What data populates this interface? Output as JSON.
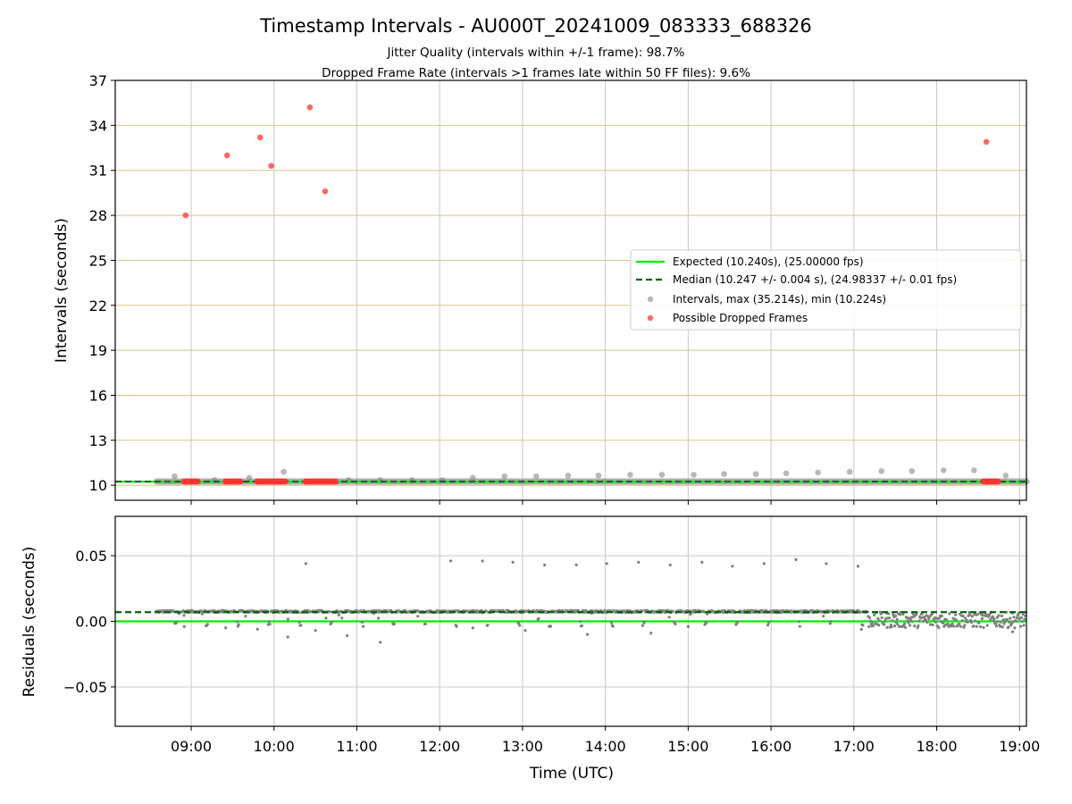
{
  "chart_data": {
    "title": "Timestamp Intervals - AU000T_20241009_083333_688326",
    "subtitle_lines": [
      "Jitter Quality (intervals within +/-1 frame): 98.7%",
      "Dropped Frame Rate (intervals >1 frames late within 50 FF files): 9.6%"
    ],
    "xlabel": "Time (UTC)",
    "x_range": [
      "08:05",
      "19:05"
    ],
    "x_ticks": [
      "09:00",
      "10:00",
      "11:00",
      "12:00",
      "13:00",
      "14:00",
      "15:00",
      "16:00",
      "17:00",
      "18:00",
      "19:00"
    ],
    "top": {
      "type": "scatter",
      "ylabel": "Intervals (seconds)",
      "ylim": [
        9.0,
        37.0
      ],
      "y_ticks": [
        "10",
        "13",
        "16",
        "19",
        "22",
        "25",
        "28",
        "31",
        "34",
        "37"
      ],
      "grid": "on",
      "legend_placement": "center-right",
      "legend": [
        "Expected (10.240s), (25.00000 fps)",
        "Median (10.247 +/- 0.004 s), (24.98337 +/- 0.01 fps)",
        "Intervals, max (35.214s), min (10.224s)",
        "Possible Dropped Frames"
      ],
      "expected_line": 10.24,
      "median_line": 10.247,
      "intervals_baseline": 10.25,
      "intervals_baseline_range": [
        "08:35",
        "19:05"
      ],
      "interval_highlights": [
        {
          "x": "08:48",
          "y": 10.6
        },
        {
          "x": "09:17",
          "y": 10.35
        },
        {
          "x": "09:42",
          "y": 10.5
        },
        {
          "x": "10:07",
          "y": 10.9
        },
        {
          "x": "10:54",
          "y": 10.35
        },
        {
          "x": "11:17",
          "y": 10.35
        },
        {
          "x": "11:40",
          "y": 10.35
        },
        {
          "x": "12:02",
          "y": 10.35
        },
        {
          "x": "12:24",
          "y": 10.5
        },
        {
          "x": "12:47",
          "y": 10.6
        },
        {
          "x": "13:10",
          "y": 10.6
        },
        {
          "x": "13:33",
          "y": 10.65
        },
        {
          "x": "13:55",
          "y": 10.65
        },
        {
          "x": "14:18",
          "y": 10.7
        },
        {
          "x": "14:41",
          "y": 10.7
        },
        {
          "x": "15:04",
          "y": 10.7
        },
        {
          "x": "15:26",
          "y": 10.75
        },
        {
          "x": "15:49",
          "y": 10.75
        },
        {
          "x": "16:11",
          "y": 10.8
        },
        {
          "x": "16:34",
          "y": 10.85
        },
        {
          "x": "16:57",
          "y": 10.9
        },
        {
          "x": "17:20",
          "y": 10.95
        },
        {
          "x": "17:42",
          "y": 10.95
        },
        {
          "x": "18:05",
          "y": 11.0
        },
        {
          "x": "18:27",
          "y": 11.0
        },
        {
          "x": "18:50",
          "y": 10.65
        }
      ],
      "dropped_frames": [
        {
          "x": "08:56",
          "y": 28.0
        },
        {
          "x": "09:26",
          "y": 32.0
        },
        {
          "x": "09:50",
          "y": 33.2
        },
        {
          "x": "09:58",
          "y": 31.3
        },
        {
          "x": "10:26",
          "y": 35.2
        },
        {
          "x": "10:37",
          "y": 29.6
        },
        {
          "x": "18:36",
          "y": 32.9
        }
      ],
      "dropped_frame_clusters": [
        [
          "08:55",
          "09:05"
        ],
        [
          "09:25",
          "09:36"
        ],
        [
          "09:48",
          "10:08"
        ],
        [
          "10:23",
          "10:45"
        ],
        [
          "18:34",
          "18:45"
        ]
      ],
      "dropped_frame_cluster_value": 10.25
    },
    "bottom": {
      "type": "scatter",
      "ylabel": "Residuals (seconds)",
      "ylim": [
        -0.08,
        0.08
      ],
      "y_ticks": [
        {
          "value": 0.05,
          "label": "0.05"
        },
        {
          "value": 0.0,
          "label": "0.00"
        },
        {
          "value": -0.05,
          "label": "−0.05"
        }
      ],
      "grid": "on",
      "expected_line": 0.0,
      "median_line": 0.007,
      "residual_spikes": [
        {
          "x": "10:23",
          "y": 0.044
        },
        {
          "x": "12:08",
          "y": 0.046
        },
        {
          "x": "12:31",
          "y": 0.046
        },
        {
          "x": "12:53",
          "y": 0.045
        },
        {
          "x": "13:16",
          "y": 0.043
        },
        {
          "x": "13:39",
          "y": 0.043
        },
        {
          "x": "14:01",
          "y": 0.044
        },
        {
          "x": "14:24",
          "y": 0.045
        },
        {
          "x": "14:47",
          "y": 0.043
        },
        {
          "x": "15:10",
          "y": 0.045
        },
        {
          "x": "15:32",
          "y": 0.042
        },
        {
          "x": "15:55",
          "y": 0.044
        },
        {
          "x": "16:18",
          "y": 0.047
        },
        {
          "x": "16:40",
          "y": 0.044
        },
        {
          "x": "17:03",
          "y": 0.042
        }
      ],
      "residual_lows": [
        {
          "x": "08:55",
          "y": -0.004
        },
        {
          "x": "09:25",
          "y": -0.005
        },
        {
          "x": "09:48",
          "y": -0.006
        },
        {
          "x": "10:10",
          "y": -0.012
        },
        {
          "x": "10:30",
          "y": -0.007
        },
        {
          "x": "10:53",
          "y": -0.011
        },
        {
          "x": "11:17",
          "y": -0.016
        },
        {
          "x": "12:24",
          "y": -0.005
        },
        {
          "x": "13:02",
          "y": -0.007
        },
        {
          "x": "13:47",
          "y": -0.01
        },
        {
          "x": "14:33",
          "y": -0.009
        },
        {
          "x": "15:00",
          "y": -0.004
        },
        {
          "x": "18:55",
          "y": -0.008
        }
      ],
      "noisy_region": [
        "17:10",
        "19:05"
      ]
    },
    "colors": {
      "expected": "#00ee00",
      "median": "#006400",
      "intervals": "#808080",
      "dropped": "#ff3333",
      "grid": "#c8c8c8",
      "hgrid_top": "#d9c587"
    }
  }
}
